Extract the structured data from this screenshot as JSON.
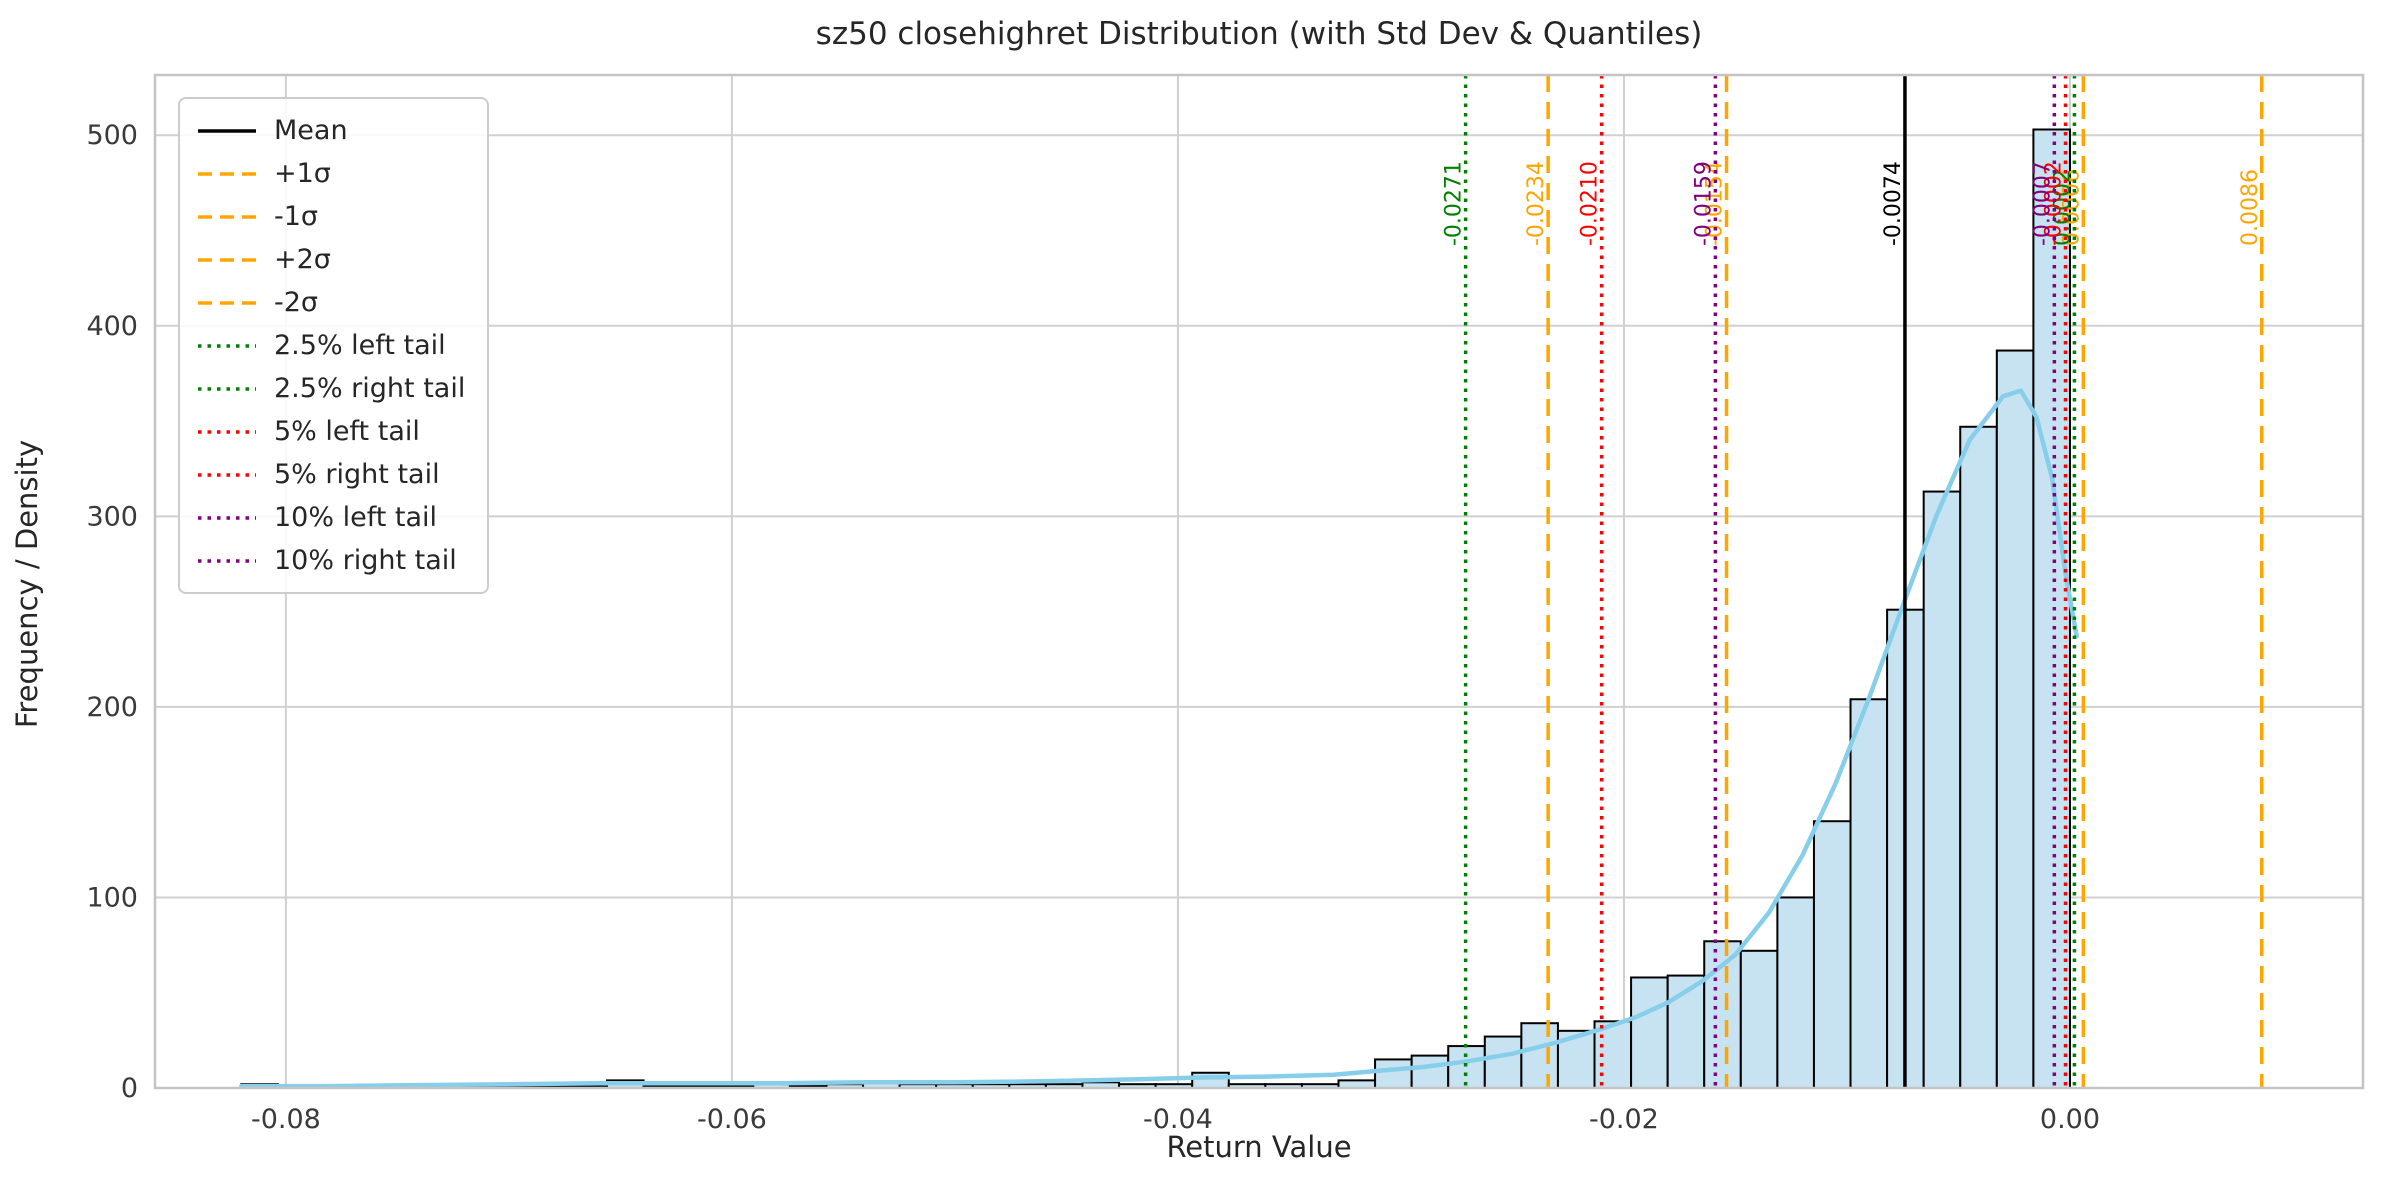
{
  "chart_data": {
    "type": "histogram+kde",
    "title": "sz50 closehighret Distribution (with Std Dev & Quantiles)",
    "xlabel": "Return Value",
    "ylabel": "Frequency / Density",
    "xlim": [
      -0.08587,
      0.01314
    ],
    "ylim": [
      0,
      531.6
    ],
    "grid": true,
    "x_ticks": [
      {
        "value": -0.08,
        "label": "-0.08"
      },
      {
        "value": -0.06,
        "label": "-0.06"
      },
      {
        "value": -0.04,
        "label": "-0.04"
      },
      {
        "value": -0.02,
        "label": "-0.02"
      },
      {
        "value": 0.0,
        "label": "0.00"
      }
    ],
    "y_ticks": [
      {
        "value": 0,
        "label": "0"
      },
      {
        "value": 100,
        "label": "100"
      },
      {
        "value": 200,
        "label": "200"
      },
      {
        "value": 300,
        "label": "300"
      },
      {
        "value": 400,
        "label": "400"
      },
      {
        "value": 500,
        "label": "500"
      }
    ],
    "histogram": {
      "bin_start": -0.082,
      "bin_width": 0.00164,
      "counts": [
        2,
        1,
        1,
        1,
        1,
        1,
        1,
        1,
        1,
        1,
        4,
        1,
        1,
        1,
        2,
        1,
        2,
        3,
        2,
        2,
        2,
        2,
        2,
        3,
        2,
        2,
        8,
        2,
        2,
        2,
        4,
        15,
        17,
        22,
        27,
        34,
        30,
        35,
        58,
        59,
        77,
        72,
        100,
        140,
        204,
        251,
        313,
        347,
        387,
        503
      ]
    },
    "kde": {
      "x": [
        -0.082,
        -0.078,
        -0.074,
        -0.07,
        -0.066,
        -0.062,
        -0.058,
        -0.054,
        -0.05,
        -0.046,
        -0.042,
        -0.039,
        -0.036,
        -0.033,
        -0.031,
        -0.029,
        -0.027,
        -0.025,
        -0.023,
        -0.021,
        -0.0195,
        -0.018,
        -0.0165,
        -0.015,
        -0.0135,
        -0.012,
        -0.0105,
        -0.009,
        -0.0075,
        -0.006,
        -0.0045,
        -0.003,
        -0.0022,
        -0.0015,
        -0.0008,
        -0.0002,
        0.0003
      ],
      "y": [
        1,
        1,
        1.5,
        2,
        2.5,
        2.5,
        2.5,
        3,
        3,
        3.5,
        4.5,
        5.5,
        6,
        7,
        9,
        11,
        14,
        18,
        24,
        31,
        37,
        45,
        56,
        70,
        92,
        122,
        160,
        205,
        253,
        300,
        340,
        363,
        366,
        352,
        320,
        270,
        237
      ]
    },
    "vlines": [
      {
        "name": "mean",
        "value": -0.0074,
        "label": "-0.0074",
        "color": "#000000",
        "style": "solid"
      },
      {
        "name": "minus-2-sigma",
        "value": -0.0234,
        "label": "-0.0234",
        "color": "#ffa500",
        "style": "dashed"
      },
      {
        "name": "minus-1-sigma",
        "value": -0.0154,
        "label": "-0.0154",
        "color": "#ffa500",
        "style": "dashed"
      },
      {
        "name": "plus-1-sigma",
        "value": 0.0006,
        "label": "0.0006",
        "color": "#ffa500",
        "style": "dashed"
      },
      {
        "name": "plus-2-sigma",
        "value": 0.0086,
        "label": "0.0086",
        "color": "#ffa500",
        "style": "dashed"
      },
      {
        "name": "q2p5-left-tail",
        "value": -0.0271,
        "label": "-0.0271",
        "color": "#008000",
        "style": "dotted"
      },
      {
        "name": "q2p5-right-tail",
        "value": 0.0002,
        "label": "0.0002",
        "color": "#008000",
        "style": "dotted"
      },
      {
        "name": "q5-left-tail",
        "value": -0.021,
        "label": "-0.0210",
        "color": "#ff0000",
        "style": "dotted"
      },
      {
        "name": "q5-right-tail",
        "value": -0.0002,
        "label": "-0.0002",
        "color": "#ff0000",
        "style": "dotted"
      },
      {
        "name": "q10-left-tail",
        "value": -0.0159,
        "label": "-0.0159",
        "color": "#800080",
        "style": "dotted"
      },
      {
        "name": "q10-right-tail",
        "value": -0.0007,
        "label": "-0.0007",
        "color": "#800080",
        "style": "dotted"
      }
    ],
    "legend": [
      {
        "label": "Mean",
        "color": "#000000",
        "style": "solid"
      },
      {
        "label": "+1σ",
        "color": "#ffa500",
        "style": "dashed"
      },
      {
        "label": "-1σ",
        "color": "#ffa500",
        "style": "dashed"
      },
      {
        "label": "+2σ",
        "color": "#ffa500",
        "style": "dashed"
      },
      {
        "label": "-2σ",
        "color": "#ffa500",
        "style": "dashed"
      },
      {
        "label": "2.5% left tail",
        "color": "#008000",
        "style": "dotted"
      },
      {
        "label": "2.5% right tail",
        "color": "#008000",
        "style": "dotted"
      },
      {
        "label": "5% left tail",
        "color": "#ff0000",
        "style": "dotted"
      },
      {
        "label": "5% right tail",
        "color": "#ff0000",
        "style": "dotted"
      },
      {
        "label": "10% left tail",
        "color": "#800080",
        "style": "dotted"
      },
      {
        "label": "10% right tail",
        "color": "#800080",
        "style": "dotted"
      }
    ],
    "legend_position": "upper left"
  },
  "colors": {
    "bar_fill": "#c7e3f2",
    "bar_edge": "#000000",
    "kde": "#87ceeb",
    "grid": "#d0d0d0",
    "spine": "#c4c4c4",
    "tick_text": "#3a3a3a"
  }
}
